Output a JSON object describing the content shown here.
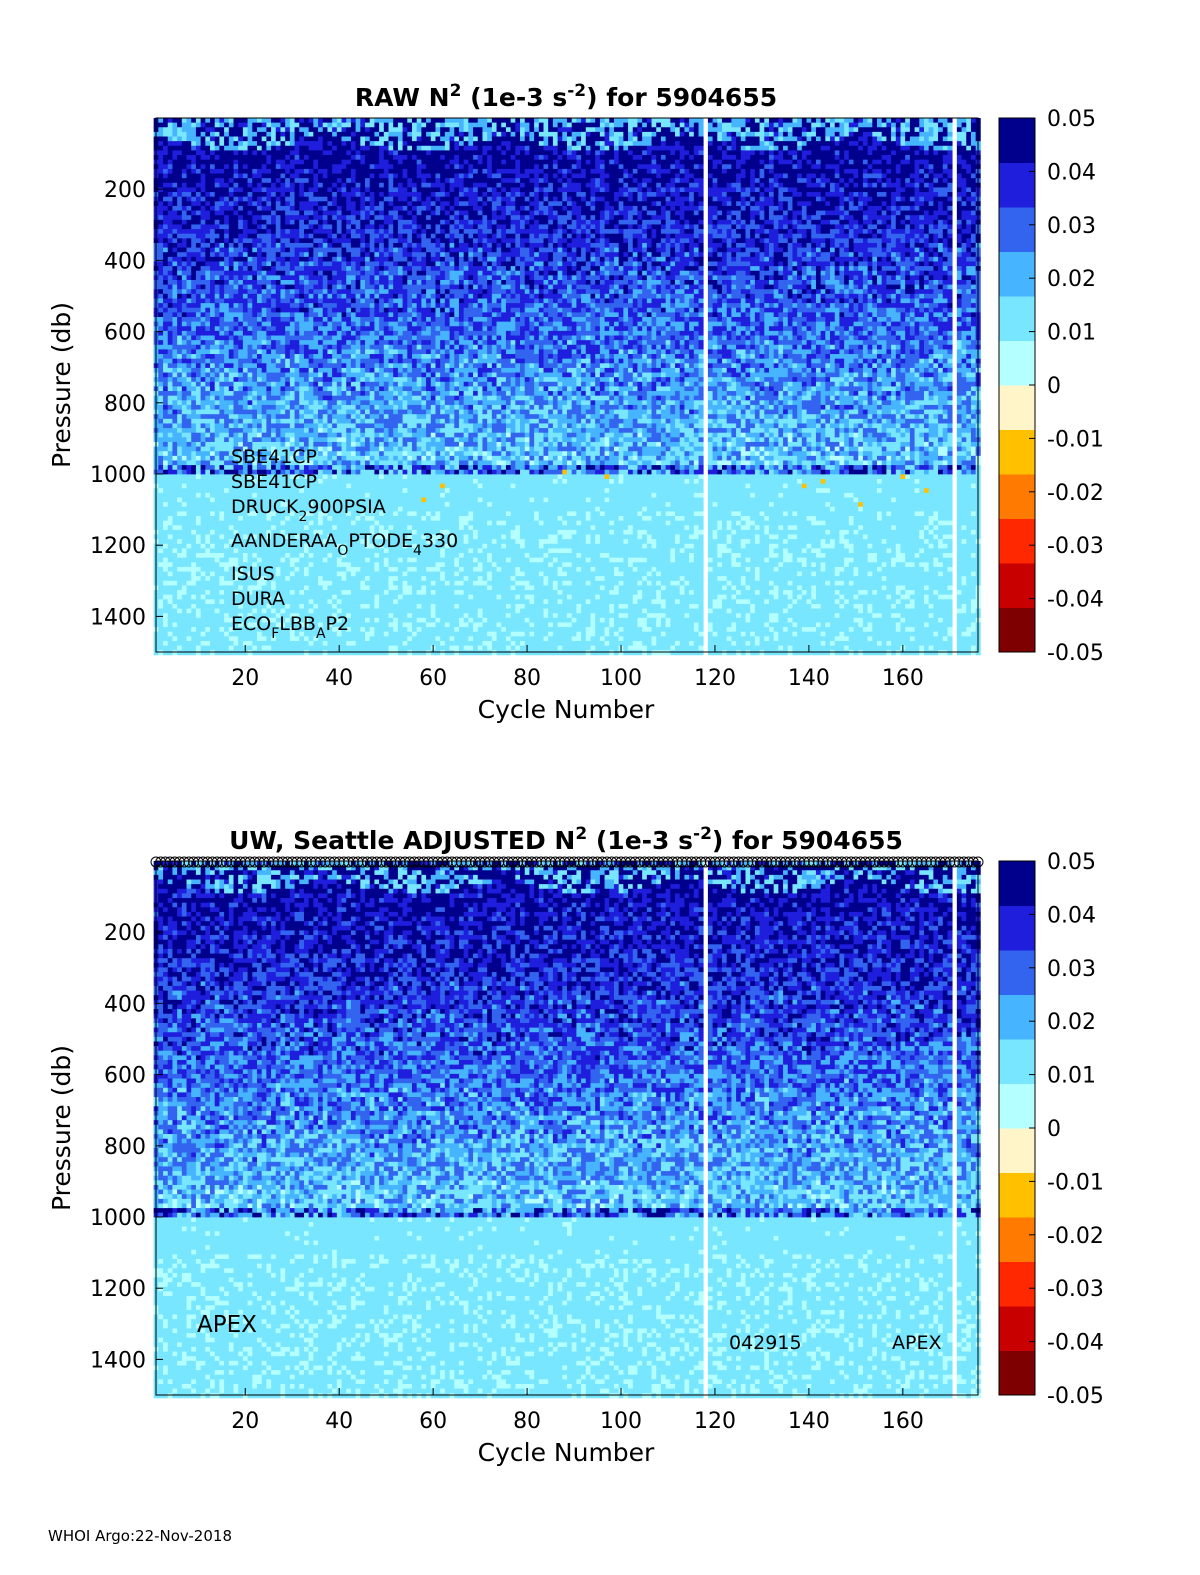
{
  "footer": "WHOI Argo:22-Nov-2018",
  "colors": {
    "colormap": [
      "#7f0000",
      "#c80000",
      "#ff2800",
      "#ff7a00",
      "#ffc000",
      "#fff5c8",
      "#b4ffff",
      "#78e6ff",
      "#46b4ff",
      "#3264f0",
      "#1e1edc",
      "#00008c"
    ]
  },
  "chart_data": [
    {
      "type": "heatmap",
      "title": "RAW N",
      "title_sup1": "2",
      "title_mid": " (1e-3 s",
      "title_sup2": "-2",
      "title_end": ") for 5904655",
      "xlabel": "Cycle Number",
      "ylabel": "Pressure (db)",
      "xlim": [
        1,
        176
      ],
      "ylim": [
        1500,
        0
      ],
      "xticks": [
        20,
        40,
        60,
        80,
        100,
        120,
        140,
        160
      ],
      "yticks": [
        200,
        400,
        600,
        800,
        1000,
        1200,
        1400
      ],
      "colorbar": {
        "min": -0.05,
        "max": 0.05,
        "ticks": [
          "0.05",
          "0.04",
          "0.03",
          "0.02",
          "0.01",
          "0",
          "-0.01",
          "-0.02",
          "-0.03",
          "-0.04",
          "-0.05"
        ]
      },
      "missing_cycles": [
        118,
        171
      ],
      "sensor_labels": [
        {
          "text": "SBE41CP"
        },
        {
          "text": "SBE41CP"
        },
        {
          "text": "DRUCK",
          "sub": "2",
          "text2": "900PSIA"
        },
        {
          "text": "AANDERAA",
          "sub": "O",
          "text2": "PTODE",
          "sub2": "4",
          "text3": "330"
        },
        {
          "text": "ISUS"
        },
        {
          "text": "DURA"
        },
        {
          "text": "ECO",
          "sub": "F",
          "text2": "LBB",
          "sub2": "A",
          "text3": "P2"
        }
      ]
    },
    {
      "type": "heatmap",
      "title": "UW, Seattle  ADJUSTED N",
      "title_sup1": "2",
      "title_mid": " (1e-3 s",
      "title_sup2": "-2",
      "title_end": ") for 5904655",
      "xlabel": "Cycle Number",
      "ylabel": "Pressure (db)",
      "xlim": [
        1,
        176
      ],
      "ylim": [
        1500,
        0
      ],
      "xticks": [
        20,
        40,
        60,
        80,
        100,
        120,
        140,
        160
      ],
      "yticks": [
        200,
        400,
        600,
        800,
        1000,
        1200,
        1400
      ],
      "colorbar": {
        "min": -0.05,
        "max": 0.05,
        "ticks": [
          "0.05",
          "0.04",
          "0.03",
          "0.02",
          "0.01",
          "0",
          "-0.01",
          "-0.02",
          "-0.03",
          "-0.04",
          "-0.05"
        ]
      },
      "missing_cycles": [
        118,
        171
      ],
      "annotations": [
        {
          "text": "APEX"
        },
        {
          "text": "042915"
        },
        {
          "text": "APEX"
        }
      ]
    }
  ]
}
